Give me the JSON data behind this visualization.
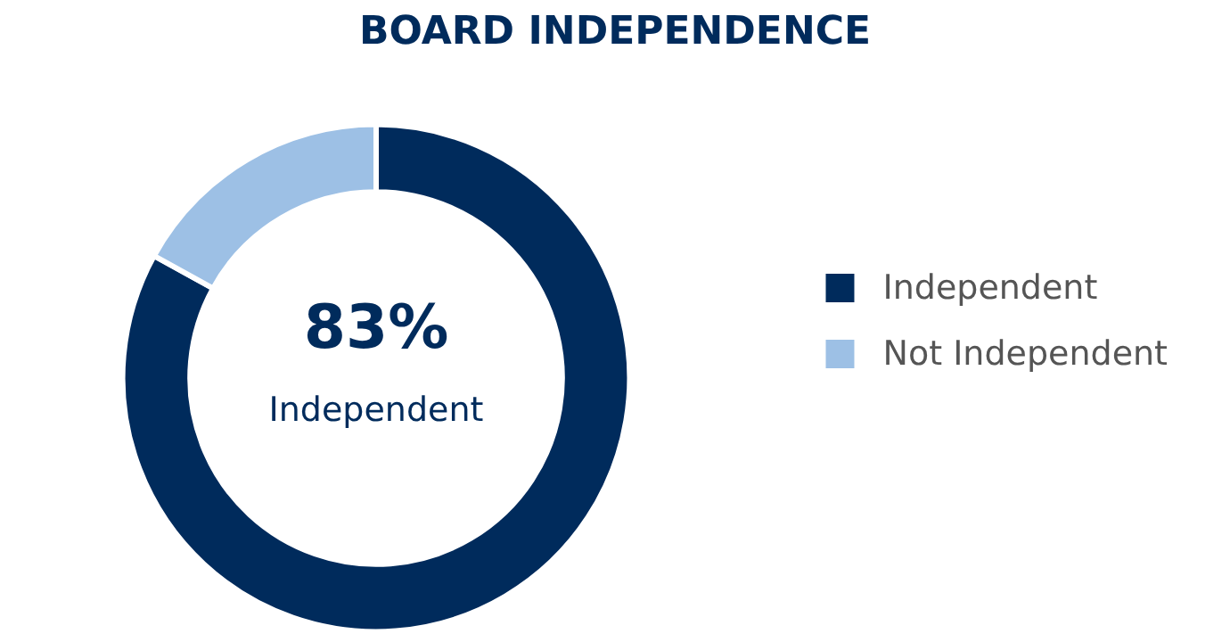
{
  "chart_data": {
    "type": "donut",
    "title": "BOARD INDEPENDENCE",
    "categories": [
      "Independent",
      "Not Independent"
    ],
    "values": [
      83,
      17
    ],
    "colors": [
      "#002b5c",
      "#9dc0e5"
    ],
    "legend": "right",
    "annotations": [
      "83%",
      "Independent"
    ]
  }
}
